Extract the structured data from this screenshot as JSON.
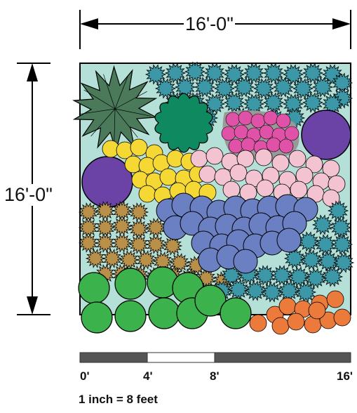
{
  "dimensions": {
    "width_label": "16'-0\"",
    "height_label": "16'-0\""
  },
  "scale_bar": {
    "labels": [
      "0'",
      "4'",
      "8'",
      "16'"
    ],
    "note": "1 inch  =  8 feet"
  },
  "colors": {
    "background": "#b5e0d7",
    "star_plant": "#4a7a5a",
    "dark_green": "#0f8a60",
    "magenta": "#e052a8",
    "purple": "#6b42a5",
    "yellow": "#f6d834",
    "pink": "#f3c3d1",
    "blue": "#6b7fc3",
    "gold": "#b9904a",
    "teal": "#3c97a6",
    "bright_green": "#3cb24c",
    "orange": "#ec7a3a"
  }
}
